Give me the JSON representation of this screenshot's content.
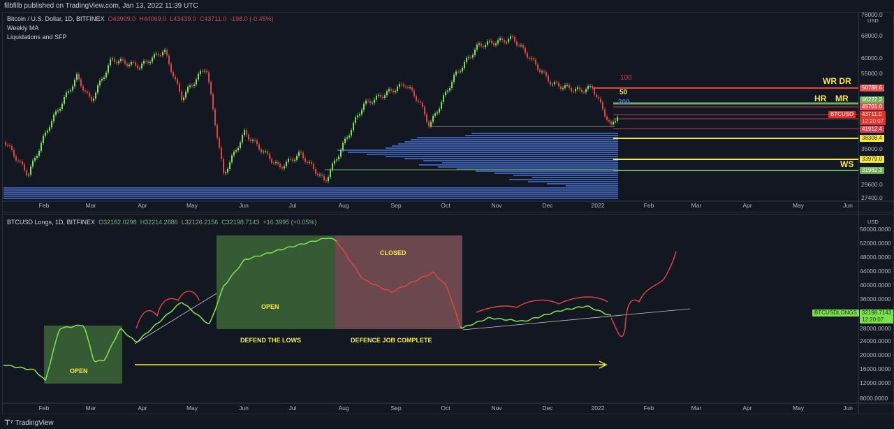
{
  "publisher": "filbfilb published on TradingView.com, Jan 13, 2022 11:39 UTC",
  "top": {
    "symbol": "Bitcoin / U.S. Dollar, 1D, BITFINEX",
    "o": "O43909.0",
    "h": "H44069.0",
    "l": "L43439.0",
    "c": "C43711.0",
    "chg": "-198.0 (-0.45%)",
    "ind1": "Weekly MA",
    "ind2": "Liquidations and SFP",
    "currency": "USD",
    "axis": [
      "76000.0",
      "68000.0",
      "60000.0",
      "55000.0",
      "35000.0",
      "29600.0",
      "27400.0"
    ],
    "tags": {
      "wrdr": "50788.6",
      "mr": "46222.2",
      "p1": "45701.0",
      "price": "43711.0",
      "timer": "12:20:07",
      "p2": "41912.4",
      "y1": "38308.4",
      "y2": "33979.0",
      "ws": "31962.3",
      "sym": "BTCUSD"
    },
    "labels": {
      "wrdr": "WR DR",
      "mr": "MR",
      "hr": "HR",
      "ws": "WS",
      "ma100": "100",
      "ma50": "50",
      "ma200": "200"
    }
  },
  "bottom": {
    "symbol": "BTCUSD Longs, 1D, BITFINEX",
    "o": "O32182.0298",
    "h": "H32214.2886",
    "l": "L32126.2156",
    "c": "C32198.7143",
    "chg": "+16.3995 (+0.05%)",
    "currency": "USD",
    "axis": [
      "56000.0000",
      "52000.0000",
      "48000.0000",
      "44000.0000",
      "40000.0000",
      "36000.0000",
      "28000.0000",
      "24000.0000",
      "20000.0000",
      "16000.0000",
      "12000.0000",
      "8000.0000"
    ],
    "tags": {
      "sym": "BTCUSDLONGS",
      "price": "32198.7143",
      "timer": "12:20:07"
    },
    "annotations": {
      "open1": "OPEN",
      "open2": "OPEN",
      "closed": "CLOSED",
      "defend": "DEFEND THE LOWS",
      "complete": "DEFENCE JOB COMPLETE"
    }
  },
  "time_axis": [
    "Feb",
    "Mar",
    "Apr",
    "May",
    "Jun",
    "Jul",
    "Aug",
    "Sep",
    "Oct",
    "Nov",
    "Dec",
    "2022",
    "Feb",
    "Mar",
    "Apr",
    "May",
    "Jun"
  ],
  "footer": "TradingView",
  "colors": {
    "up": "#7ee04f",
    "down": "#e0443e",
    "yellow": "#f5e94a",
    "green": "#6fae5a",
    "red": "#e0443e",
    "blue": "#4a6fd0"
  }
}
